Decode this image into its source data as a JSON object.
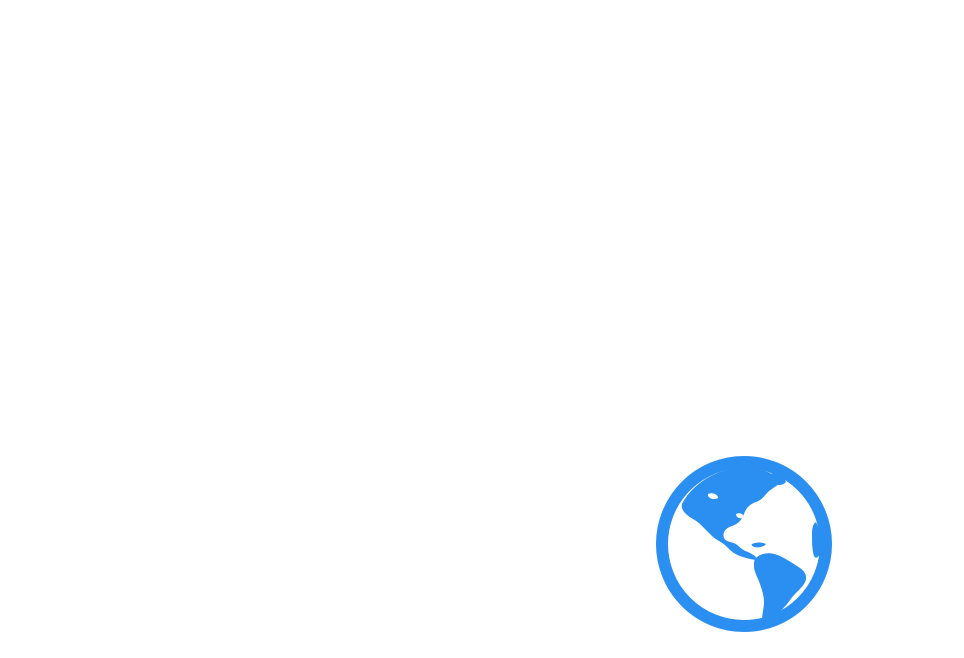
{
  "screen": {
    "background": "#ffffff"
  },
  "globe": {
    "icon": "globe-americas-icon",
    "color": "#2a8ff0",
    "land_color": "#2a8ff0",
    "ocean_color": "#ffffff"
  }
}
